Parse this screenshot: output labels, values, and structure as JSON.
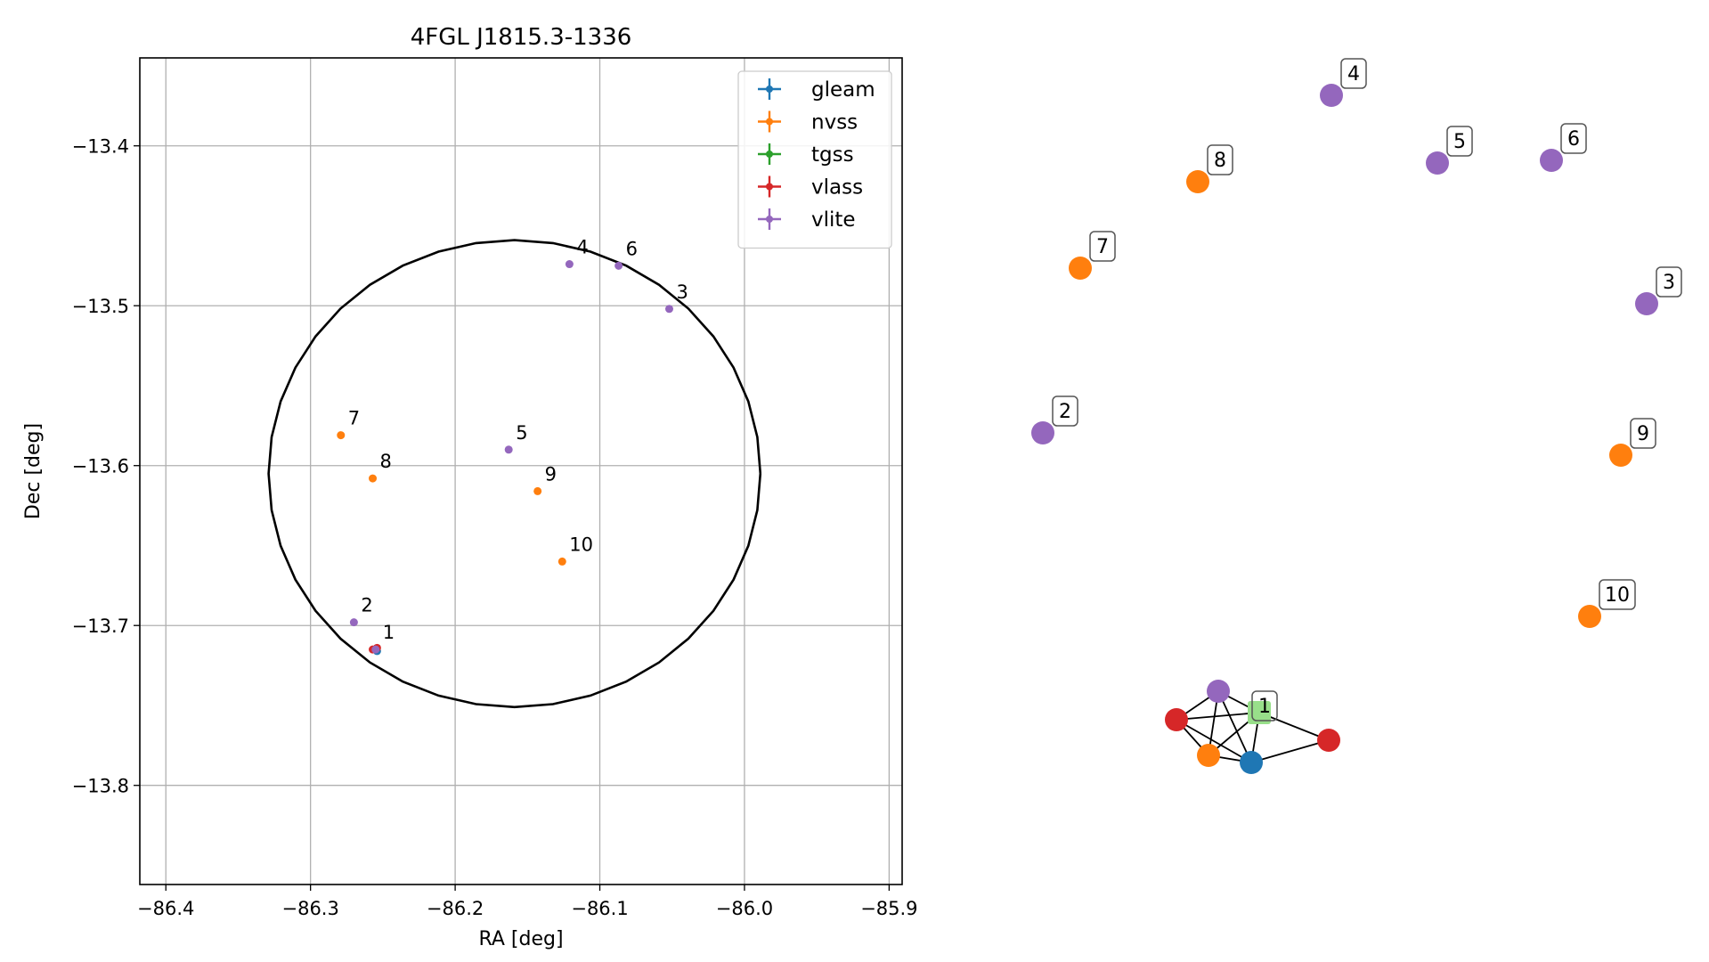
{
  "chart_data": [
    {
      "type": "scatter",
      "title": "4FGL J1815.3-1336",
      "xlabel": "RA [deg]",
      "ylabel": "Dec [deg]",
      "xlim": [
        -86.418,
        -85.891
      ],
      "ylim": [
        -13.862,
        -13.345
      ],
      "xticks": [
        -86.4,
        -86.3,
        -86.2,
        -86.1,
        -86.0,
        -85.9
      ],
      "xtick_labels": [
        "−86.4",
        "−86.3",
        "−86.2",
        "−86.1",
        "−86.0",
        "−85.9"
      ],
      "yticks": [
        -13.4,
        -13.5,
        -13.6,
        -13.7,
        -13.8
      ],
      "ytick_labels": [
        "−13.4",
        "−13.5",
        "−13.6",
        "−13.7",
        "−13.8"
      ],
      "grid": true,
      "legend_placement": "top-right",
      "series": [
        {
          "name": "gleam",
          "color": "#1f77b4",
          "points": [
            {
              "x": -86.254,
              "y": -13.716,
              "label": ""
            }
          ]
        },
        {
          "name": "nvss",
          "color": "#ff7f0e",
          "points": [
            {
              "x": -86.279,
              "y": -13.581,
              "label": "7"
            },
            {
              "x": -86.257,
              "y": -13.608,
              "label": "8"
            },
            {
              "x": -86.143,
              "y": -13.616,
              "label": "9"
            },
            {
              "x": -86.126,
              "y": -13.66,
              "label": "10"
            }
          ]
        },
        {
          "name": "tgss",
          "color": "#2ca02c",
          "points": []
        },
        {
          "name": "vlass",
          "color": "#d62728",
          "points": [
            {
              "x": -86.257,
              "y": -13.715,
              "label": ""
            },
            {
              "x": -86.254,
              "y": -13.714,
              "label": ""
            }
          ]
        },
        {
          "name": "vlite",
          "color": "#9467bd",
          "points": [
            {
              "x": -86.255,
              "y": -13.715,
              "label": "1"
            },
            {
              "x": -86.27,
              "y": -13.698,
              "label": "2"
            },
            {
              "x": -86.052,
              "y": -13.502,
              "label": "3"
            },
            {
              "x": -86.121,
              "y": -13.474,
              "label": "4"
            },
            {
              "x": -86.163,
              "y": -13.59,
              "label": "5"
            },
            {
              "x": -86.087,
              "y": -13.475,
              "label": "6"
            }
          ]
        }
      ],
      "ellipse": {
        "center": [
          -86.159,
          -13.605
        ],
        "semi_axis_ra": 0.17,
        "semi_axis_dec": 0.146,
        "color": "#000000"
      }
    },
    {
      "type": "network",
      "nodes": [
        {
          "id": "n2",
          "label": "2",
          "color": "#9467bd"
        },
        {
          "id": "n3",
          "label": "3",
          "color": "#9467bd"
        },
        {
          "id": "n4",
          "label": "4",
          "color": "#9467bd"
        },
        {
          "id": "n5",
          "label": "5",
          "color": "#9467bd"
        },
        {
          "id": "n6",
          "label": "6",
          "color": "#9467bd"
        },
        {
          "id": "n7",
          "label": "7",
          "color": "#ff7f0e"
        },
        {
          "id": "n8",
          "label": "8",
          "color": "#ff7f0e"
        },
        {
          "id": "n9",
          "label": "9",
          "color": "#ff7f0e"
        },
        {
          "id": "n10",
          "label": "10",
          "color": "#ff7f0e"
        },
        {
          "id": "c_vlite",
          "label": "",
          "color": "#9467bd"
        },
        {
          "id": "c_tgss",
          "label": "1",
          "color": "#98df8a"
        },
        {
          "id": "c_vlass1",
          "label": "",
          "color": "#d62728"
        },
        {
          "id": "c_vlass2",
          "label": "",
          "color": "#d62728"
        },
        {
          "id": "c_nvss",
          "label": "",
          "color": "#ff7f0e"
        },
        {
          "id": "c_gleam",
          "label": "",
          "color": "#1f77b4"
        }
      ],
      "edges": [
        [
          "c_vlite",
          "c_tgss"
        ],
        [
          "c_vlite",
          "c_vlass1"
        ],
        [
          "c_vlite",
          "c_nvss"
        ],
        [
          "c_vlite",
          "c_gleam"
        ],
        [
          "c_vlass1",
          "c_tgss"
        ],
        [
          "c_vlass1",
          "c_nvss"
        ],
        [
          "c_vlass1",
          "c_gleam"
        ],
        [
          "c_tgss",
          "c_nvss"
        ],
        [
          "c_tgss",
          "c_gleam"
        ],
        [
          "c_tgss",
          "c_vlass2"
        ],
        [
          "c_nvss",
          "c_gleam"
        ],
        [
          "c_gleam",
          "c_vlass2"
        ]
      ]
    }
  ]
}
